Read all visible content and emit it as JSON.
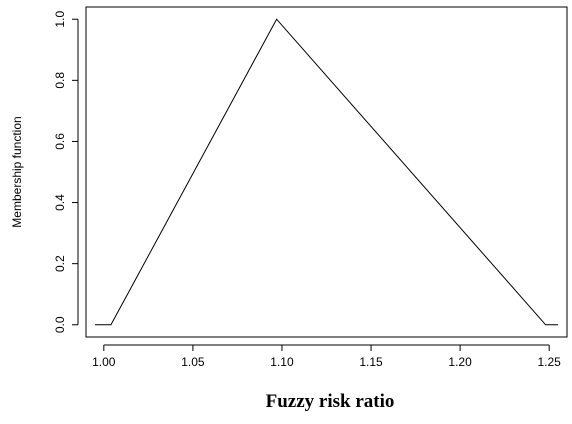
{
  "chart_data": {
    "type": "line",
    "xlabel": "Fuzzy risk ratio",
    "ylabel": "Membership function",
    "xlim": [
      0.99,
      1.26
    ],
    "ylim": [
      -0.04,
      1.04
    ],
    "x_ticks": [
      "1.00",
      "1.05",
      "1.10",
      "1.15",
      "1.20",
      "1.25"
    ],
    "y_ticks": [
      "0.0",
      "0.2",
      "0.4",
      "0.6",
      "0.8",
      "1.0"
    ],
    "series": [
      {
        "x": [
          0.995,
          1.004,
          1.097,
          1.248,
          1.255
        ],
        "y": [
          0.0,
          0.0,
          1.0,
          0.0,
          0.0
        ]
      }
    ],
    "grid": false,
    "line_color": "#000000"
  }
}
